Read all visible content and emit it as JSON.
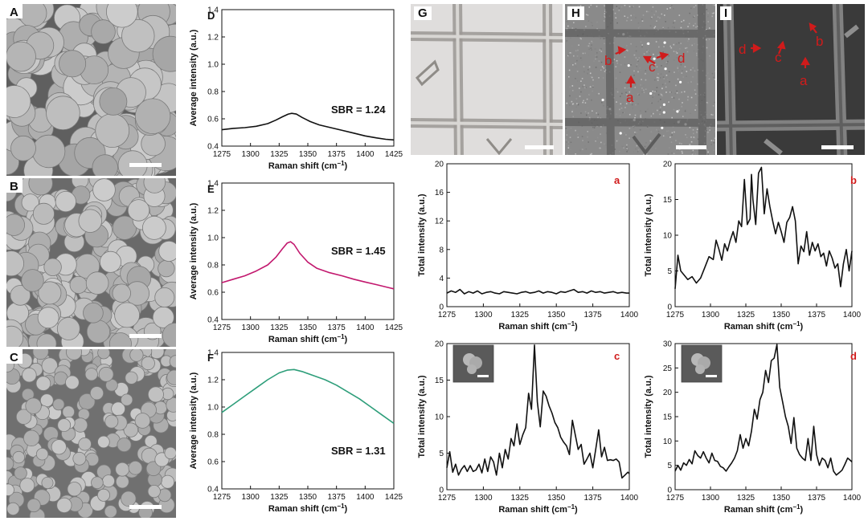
{
  "colors": {
    "black_trace": "#111111",
    "magenta_trace": "#c2186e",
    "green_trace": "#2e9e7a",
    "red_label": "#d01b1b",
    "sem_bg": "#6e6e6e",
    "sem_particle": "#b4b4b4"
  },
  "panels": {
    "A": {
      "label": "A"
    },
    "B": {
      "label": "B"
    },
    "C": {
      "label": "C"
    },
    "G": {
      "label": "G"
    },
    "H": {
      "label": "H",
      "arrows": [
        "b",
        "c",
        "d",
        "a"
      ]
    },
    "I": {
      "label": "I",
      "arrows": [
        "d",
        "c",
        "b",
        "a"
      ]
    }
  },
  "chart_data": [
    {
      "id": "D",
      "type": "line",
      "label": "D",
      "color": "#111111",
      "xlabel": "Raman shift (cm",
      "xlabel_sup": "−1",
      "xlabel_close": ")",
      "ylabel": "Average intensity (a.u.)",
      "xlim": [
        1275,
        1425
      ],
      "ylim": [
        0.4,
        1.4
      ],
      "xticks": [
        "1275",
        "1300",
        "1325",
        "1350",
        "1375",
        "1400",
        "1425"
      ],
      "yticks": [
        "0.4",
        "0.6",
        "0.8",
        "1.0",
        "1.2",
        "1.4"
      ],
      "annotation": "SBR = 1.24",
      "x": [
        1275,
        1285,
        1295,
        1305,
        1315,
        1322,
        1328,
        1333,
        1336,
        1340,
        1345,
        1352,
        1360,
        1370,
        1380,
        1390,
        1400,
        1410,
        1418,
        1425
      ],
      "y": [
        0.52,
        0.53,
        0.535,
        0.545,
        0.565,
        0.59,
        0.615,
        0.635,
        0.64,
        0.635,
        0.61,
        0.58,
        0.555,
        0.535,
        0.515,
        0.495,
        0.475,
        0.46,
        0.45,
        0.445
      ]
    },
    {
      "id": "E",
      "type": "line",
      "label": "E",
      "color": "#c2186e",
      "xlabel": "Raman shift (cm",
      "xlabel_sup": "−1",
      "xlabel_close": ")",
      "ylabel": "Average intensity (a.u.)",
      "xlim": [
        1275,
        1425
      ],
      "ylim": [
        0.4,
        1.4
      ],
      "xticks": [
        "1275",
        "1300",
        "1325",
        "1350",
        "1375",
        "1400",
        "1425"
      ],
      "yticks": [
        "0.4",
        "0.6",
        "0.8",
        "1.0",
        "1.2",
        "1.4"
      ],
      "annotation": "SBR = 1.45",
      "x": [
        1275,
        1285,
        1295,
        1305,
        1315,
        1322,
        1328,
        1332,
        1335,
        1338,
        1343,
        1350,
        1358,
        1368,
        1380,
        1390,
        1400,
        1410,
        1420,
        1425
      ],
      "y": [
        0.67,
        0.695,
        0.72,
        0.755,
        0.8,
        0.855,
        0.92,
        0.96,
        0.97,
        0.95,
        0.885,
        0.82,
        0.775,
        0.745,
        0.72,
        0.695,
        0.675,
        0.655,
        0.635,
        0.625
      ]
    },
    {
      "id": "F",
      "type": "line",
      "label": "F",
      "color": "#2e9e7a",
      "xlabel": "Raman shift (cm",
      "xlabel_sup": "−1",
      "xlabel_close": ")",
      "ylabel": "Average intensity (a.u.)",
      "xlim": [
        1275,
        1425
      ],
      "ylim": [
        0.4,
        1.4
      ],
      "xticks": [
        "1275",
        "1300",
        "1325",
        "1350",
        "1375",
        "1400",
        "1425"
      ],
      "yticks": [
        "0.4",
        "0.6",
        "0.8",
        "1.0",
        "1.2",
        "1.4"
      ],
      "annotation": "SBR = 1.31",
      "x": [
        1275,
        1285,
        1295,
        1305,
        1315,
        1325,
        1332,
        1338,
        1345,
        1355,
        1365,
        1375,
        1385,
        1395,
        1405,
        1415,
        1425
      ],
      "y": [
        0.96,
        1.02,
        1.08,
        1.14,
        1.2,
        1.25,
        1.27,
        1.275,
        1.26,
        1.23,
        1.2,
        1.16,
        1.11,
        1.06,
        1.0,
        0.94,
        0.88
      ]
    },
    {
      "id": "a",
      "type": "line",
      "label": "a",
      "color": "#111111",
      "xlabel": "Raman shift (cm",
      "xlabel_sup": "−1",
      "xlabel_close": ")",
      "ylabel": "Total intensity (a.u.)",
      "xlim": [
        1275,
        1400
      ],
      "ylim": [
        0,
        20
      ],
      "xticks": [
        "1275",
        "1300",
        "1325",
        "1350",
        "1375",
        "1400"
      ],
      "yticks": [
        "0",
        "4",
        "8",
        "12",
        "16",
        "20"
      ],
      "x": [
        1275,
        1278,
        1281,
        1284,
        1287,
        1290,
        1293,
        1296,
        1299,
        1302,
        1305,
        1308,
        1311,
        1314,
        1317,
        1320,
        1323,
        1326,
        1329,
        1332,
        1335,
        1338,
        1341,
        1344,
        1347,
        1350,
        1353,
        1356,
        1359,
        1362,
        1365,
        1368,
        1371,
        1374,
        1377,
        1380,
        1383,
        1386,
        1389,
        1392,
        1395,
        1398,
        1400
      ],
      "y": [
        1.9,
        2.2,
        2.0,
        2.4,
        1.8,
        2.1,
        1.9,
        2.2,
        1.8,
        2.0,
        2.1,
        1.9,
        1.8,
        2.1,
        2.0,
        1.9,
        1.8,
        2.0,
        2.1,
        1.9,
        2.0,
        2.2,
        1.9,
        2.1,
        2.0,
        1.8,
        2.1,
        2.0,
        2.2,
        2.4,
        2.0,
        2.1,
        1.9,
        2.2,
        2.0,
        2.1,
        1.9,
        2.0,
        2.1,
        1.9,
        2.0,
        1.9,
        1.9
      ]
    },
    {
      "id": "b",
      "type": "line",
      "label": "b",
      "color": "#111111",
      "xlabel": "Raman shift (cm",
      "xlabel_sup": "−1",
      "xlabel_close": ")",
      "ylabel": "Total intensity (a.u.)",
      "xlim": [
        1275,
        1400
      ],
      "ylim": [
        0,
        20
      ],
      "xticks": [
        "1275",
        "1300",
        "1325",
        "1350",
        "1375",
        "1400"
      ],
      "yticks": [
        "0",
        "5",
        "10",
        "15",
        "20"
      ],
      "x": [
        1275,
        1277,
        1279,
        1281,
        1284,
        1287,
        1290,
        1293,
        1296,
        1299,
        1302,
        1304,
        1306,
        1308,
        1310,
        1312,
        1314,
        1316,
        1318,
        1320,
        1322,
        1324,
        1326,
        1328,
        1329,
        1330,
        1332,
        1334,
        1336,
        1338,
        1340,
        1342,
        1344,
        1346,
        1348,
        1350,
        1352,
        1354,
        1356,
        1358,
        1360,
        1362,
        1364,
        1366,
        1368,
        1370,
        1372,
        1374,
        1376,
        1378,
        1380,
        1382,
        1384,
        1386,
        1388,
        1390,
        1392,
        1394,
        1396,
        1398,
        1400
      ],
      "y": [
        2.5,
        7.2,
        5.0,
        4.5,
        3.8,
        4.2,
        3.3,
        4.0,
        5.5,
        7.0,
        6.6,
        9.3,
        8.0,
        6.5,
        8.8,
        7.8,
        9.3,
        10.5,
        9.0,
        12.0,
        11.2,
        17.8,
        11.5,
        12.3,
        18.5,
        15.0,
        11.5,
        18.7,
        19.5,
        13.0,
        16.5,
        14.0,
        12.0,
        10.2,
        11.8,
        10.5,
        9.0,
        11.8,
        12.5,
        14.0,
        12.0,
        6.0,
        8.5,
        7.7,
        10.5,
        7.2,
        9.0,
        7.8,
        8.8,
        7.0,
        7.5,
        5.7,
        7.8,
        6.8,
        5.4,
        6.0,
        2.8,
        6.0,
        8.0,
        5.0,
        7.8
      ]
    },
    {
      "id": "c",
      "type": "line",
      "label": "c",
      "color": "#111111",
      "xlabel": "Raman shift (cm",
      "xlabel_sup": "−1",
      "xlabel_close": ")",
      "ylabel": "Total intensity (a.u.)",
      "xlim": [
        1275,
        1400
      ],
      "ylim": [
        0,
        20
      ],
      "xticks": [
        "1275",
        "1300",
        "1325",
        "1350",
        "1375",
        "1400"
      ],
      "yticks": [
        "0",
        "5",
        "10",
        "15",
        "20"
      ],
      "inset": true,
      "x": [
        1275,
        1277,
        1279,
        1281,
        1283,
        1285,
        1287,
        1289,
        1291,
        1293,
        1295,
        1297,
        1299,
        1301,
        1303,
        1305,
        1307,
        1309,
        1311,
        1313,
        1315,
        1317,
        1319,
        1321,
        1323,
        1325,
        1327,
        1329,
        1331,
        1333,
        1335,
        1337,
        1339,
        1341,
        1343,
        1345,
        1347,
        1349,
        1351,
        1353,
        1355,
        1357,
        1359,
        1361,
        1363,
        1365,
        1367,
        1369,
        1371,
        1373,
        1375,
        1377,
        1379,
        1381,
        1383,
        1385,
        1387,
        1389,
        1391,
        1393,
        1395,
        1397,
        1399,
        1400
      ],
      "y": [
        3.0,
        5.2,
        2.4,
        3.5,
        2.0,
        2.8,
        3.3,
        2.5,
        3.3,
        2.5,
        2.7,
        3.5,
        2.3,
        4.2,
        2.5,
        4.5,
        3.8,
        2.0,
        5.0,
        3.0,
        5.5,
        4.2,
        7.0,
        6.0,
        9.0,
        6.2,
        7.5,
        8.5,
        13.2,
        11.0,
        19.8,
        12.0,
        8.6,
        13.5,
        12.8,
        11.5,
        10.5,
        9.2,
        8.5,
        7.2,
        6.5,
        6.0,
        4.8,
        9.5,
        7.5,
        5.5,
        6.2,
        3.5,
        4.2,
        5.0,
        3.0,
        5.5,
        8.2,
        4.5,
        5.8,
        4.0,
        4.1,
        4.0,
        4.2,
        3.8,
        1.6,
        2.0,
        2.4,
        2.2
      ]
    },
    {
      "id": "d",
      "type": "line",
      "label": "d",
      "color": "#111111",
      "xlabel": "Raman shift (cm",
      "xlabel_sup": "−1",
      "xlabel_close": ")",
      "ylabel": "Total intensity (a.u.)",
      "xlim": [
        1275,
        1400
      ],
      "ylim": [
        0,
        30
      ],
      "xticks": [
        "1275",
        "1300",
        "1325",
        "1350",
        "1375",
        "1400"
      ],
      "yticks": [
        "0",
        "5",
        "10",
        "15",
        "20",
        "25",
        "30"
      ],
      "inset": true,
      "x": [
        1275,
        1277,
        1279,
        1281,
        1283,
        1285,
        1287,
        1289,
        1291,
        1293,
        1295,
        1297,
        1299,
        1301,
        1303,
        1305,
        1307,
        1309,
        1311,
        1313,
        1315,
        1317,
        1319,
        1321,
        1323,
        1325,
        1327,
        1329,
        1331,
        1333,
        1335,
        1337,
        1339,
        1341,
        1343,
        1345,
        1347,
        1349,
        1351,
        1353,
        1355,
        1357,
        1359,
        1361,
        1363,
        1365,
        1367,
        1369,
        1371,
        1373,
        1375,
        1377,
        1379,
        1381,
        1383,
        1385,
        1387,
        1389,
        1391,
        1393,
        1395,
        1397,
        1399,
        1400
      ],
      "y": [
        3.8,
        5.0,
        4.0,
        5.5,
        5.0,
        6.2,
        5.3,
        8.0,
        7.0,
        6.5,
        7.8,
        6.5,
        5.5,
        7.5,
        6.0,
        5.8,
        4.8,
        4.5,
        3.8,
        4.7,
        5.5,
        6.5,
        8.0,
        11.3,
        8.5,
        10.5,
        9.0,
        12.0,
        16.5,
        14.5,
        18.5,
        20.0,
        24.5,
        22.0,
        26.5,
        27.0,
        29.8,
        21.0,
        18.0,
        15.0,
        13.0,
        9.5,
        14.8,
        8.5,
        7.2,
        6.5,
        6.0,
        10.5,
        6.0,
        13.0,
        7.2,
        5.0,
        6.5,
        6.0,
        4.5,
        6.5,
        3.8,
        3.0,
        3.5,
        4.0,
        5.2,
        6.5,
        6.0,
        5.7
      ]
    }
  ]
}
